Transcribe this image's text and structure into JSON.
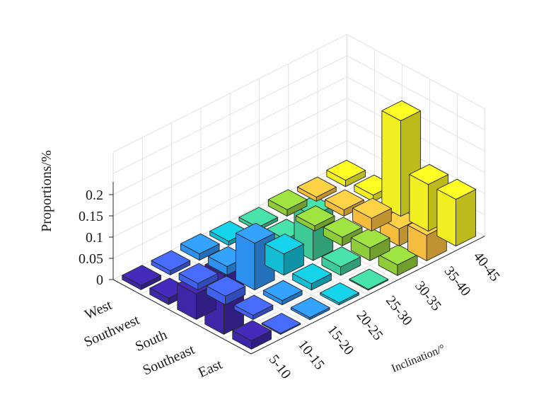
{
  "chart_data": {
    "type": "bar3d",
    "xlabel": "Inclination/°",
    "ylabel": "",
    "zlabel": "Proportions/%",
    "inclination_categories": [
      "5-10",
      "10-15",
      "15-20",
      "20-25",
      "25-30",
      "30-35",
      "35-40",
      "40-45"
    ],
    "direction_categories": [
      "East",
      "Southeast",
      "South",
      "Southwest",
      "West"
    ],
    "zticks": [
      "0",
      "0.05",
      "0.1",
      "0.15",
      "0.2"
    ],
    "zlim": [
      0,
      0.23
    ],
    "grid": true,
    "colormap": "parula",
    "values": [
      [
        0.02,
        0.0,
        0.005,
        0.005,
        0.0,
        0.025,
        0.06,
        0.11
      ],
      [
        0.14,
        0.01,
        0.01,
        0.015,
        0.02,
        0.03,
        0.04,
        0.11
      ],
      [
        0.06,
        0.02,
        0.11,
        0.05,
        0.105,
        0.02,
        0.03,
        0.225
      ],
      [
        0.015,
        0.015,
        0.02,
        0.008,
        0.015,
        0.012,
        0.015,
        0.015
      ],
      [
        0.01,
        0.01,
        0.015,
        0.01,
        0.008,
        0.015,
        0.01,
        0.015
      ]
    ],
    "colors": [
      "#3e26a8",
      "#4060f0",
      "#2e91f0",
      "#13bdd3",
      "#3fcb99",
      "#8fcc3a",
      "#f5bc3e",
      "#f2f022"
    ]
  }
}
